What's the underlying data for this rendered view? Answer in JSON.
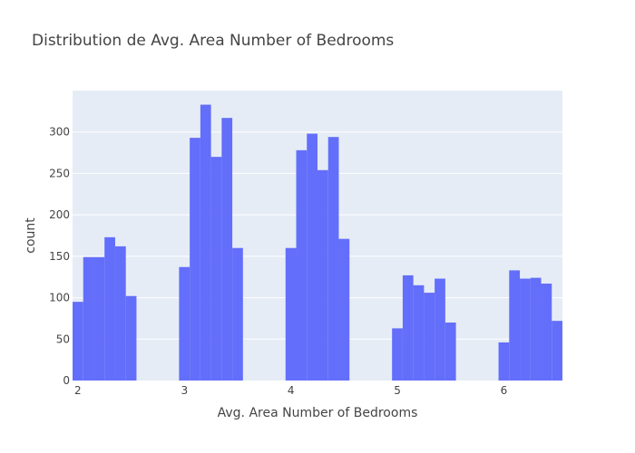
{
  "chart_data": {
    "type": "bar",
    "title": "Distribution de Avg. Area Number of Bedrooms",
    "xlabel": "Avg. Area Number of Bedrooms",
    "ylabel": "count",
    "bin_width": 0.1,
    "xlim": [
      1.95,
      6.55
    ],
    "ylim": [
      0,
      350
    ],
    "x_ticks": [
      2,
      3,
      4,
      5,
      6
    ],
    "y_ticks": [
      0,
      50,
      100,
      150,
      200,
      250,
      300
    ],
    "bins": [
      {
        "x0": 1.95,
        "count": 95
      },
      {
        "x0": 2.05,
        "count": 149
      },
      {
        "x0": 2.15,
        "count": 149
      },
      {
        "x0": 2.25,
        "count": 173
      },
      {
        "x0": 2.35,
        "count": 162
      },
      {
        "x0": 2.45,
        "count": 102
      },
      {
        "x0": 2.95,
        "count": 137
      },
      {
        "x0": 3.05,
        "count": 293
      },
      {
        "x0": 3.15,
        "count": 333
      },
      {
        "x0": 3.25,
        "count": 270
      },
      {
        "x0": 3.35,
        "count": 317
      },
      {
        "x0": 3.45,
        "count": 160
      },
      {
        "x0": 3.95,
        "count": 160
      },
      {
        "x0": 4.05,
        "count": 278
      },
      {
        "x0": 4.15,
        "count": 298
      },
      {
        "x0": 4.25,
        "count": 254
      },
      {
        "x0": 4.35,
        "count": 294
      },
      {
        "x0": 4.45,
        "count": 171
      },
      {
        "x0": 4.95,
        "count": 63
      },
      {
        "x0": 5.05,
        "count": 127
      },
      {
        "x0": 5.15,
        "count": 115
      },
      {
        "x0": 5.25,
        "count": 106
      },
      {
        "x0": 5.35,
        "count": 123
      },
      {
        "x0": 5.45,
        "count": 70
      },
      {
        "x0": 5.95,
        "count": 46
      },
      {
        "x0": 6.05,
        "count": 133
      },
      {
        "x0": 6.15,
        "count": 123
      },
      {
        "x0": 6.25,
        "count": 124
      },
      {
        "x0": 6.35,
        "count": 117
      },
      {
        "x0": 6.45,
        "count": 72
      }
    ],
    "colors": {
      "bar": "#636efa",
      "plot_bg": "#e5ecf6",
      "grid": "#ffffff",
      "text": "#444444"
    }
  }
}
